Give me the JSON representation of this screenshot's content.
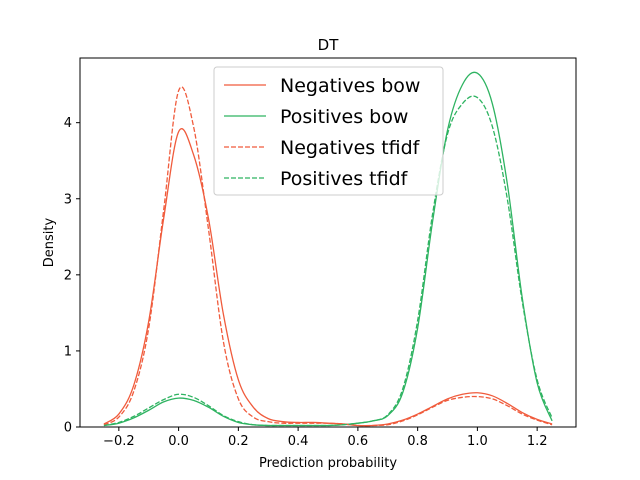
{
  "chart_data": {
    "type": "line",
    "title": "DT",
    "xlabel": "Prediction probability",
    "ylabel": "Density",
    "xlim": [
      -0.33,
      1.33
    ],
    "ylim": [
      0,
      4.85
    ],
    "xticks": [
      -0.2,
      0.0,
      0.2,
      0.4,
      0.6,
      0.8,
      1.0,
      1.2
    ],
    "xtick_labels": [
      "−0.2",
      "0.0",
      "0.2",
      "0.4",
      "0.6",
      "0.8",
      "1.0",
      "1.2"
    ],
    "yticks": [
      0,
      1,
      2,
      3,
      4
    ],
    "ytick_labels": [
      "0",
      "1",
      "2",
      "3",
      "4"
    ],
    "grid": false,
    "legend_position": "top-center",
    "colors": {
      "negatives": "#f05b3c",
      "positives": "#2eb361"
    },
    "series": [
      {
        "name": "Negatives bow",
        "color": "#f05b3c",
        "dash": "solid",
        "x": [
          -0.25,
          -0.2,
          -0.15,
          -0.1,
          -0.05,
          0.0,
          0.05,
          0.1,
          0.15,
          0.2,
          0.25,
          0.3,
          0.35,
          0.4,
          0.45,
          0.5,
          0.55,
          0.6,
          0.65,
          0.7,
          0.75,
          0.8,
          0.85,
          0.9,
          0.95,
          1.0,
          1.05,
          1.1,
          1.15,
          1.2,
          1.25
        ],
        "y": [
          0.04,
          0.17,
          0.55,
          1.39,
          2.74,
          3.88,
          3.58,
          2.74,
          1.48,
          0.62,
          0.26,
          0.11,
          0.07,
          0.06,
          0.06,
          0.05,
          0.04,
          0.02,
          0.02,
          0.04,
          0.09,
          0.17,
          0.27,
          0.37,
          0.43,
          0.45,
          0.41,
          0.31,
          0.19,
          0.1,
          0.04
        ]
      },
      {
        "name": "Positives bow",
        "color": "#2eb361",
        "dash": "solid",
        "x": [
          -0.25,
          -0.2,
          -0.15,
          -0.1,
          -0.05,
          0.0,
          0.05,
          0.1,
          0.15,
          0.2,
          0.25,
          0.3,
          0.35,
          0.4,
          0.45,
          0.5,
          0.55,
          0.6,
          0.65,
          0.7,
          0.75,
          0.8,
          0.85,
          0.9,
          0.95,
          1.0,
          1.05,
          1.1,
          1.15,
          1.2,
          1.25
        ],
        "y": [
          0.02,
          0.05,
          0.12,
          0.22,
          0.33,
          0.38,
          0.35,
          0.26,
          0.14,
          0.06,
          0.03,
          0.02,
          0.02,
          0.02,
          0.02,
          0.02,
          0.03,
          0.05,
          0.08,
          0.15,
          0.45,
          1.3,
          2.7,
          3.9,
          4.5,
          4.65,
          4.25,
          3.2,
          1.7,
          0.58,
          0.08
        ]
      },
      {
        "name": "Negatives tfidf",
        "color": "#f05b3c",
        "dash": "dashed",
        "x": [
          -0.25,
          -0.2,
          -0.15,
          -0.1,
          -0.05,
          0.0,
          0.05,
          0.1,
          0.15,
          0.2,
          0.25,
          0.3,
          0.35,
          0.4,
          0.45,
          0.5,
          0.55,
          0.6,
          0.65,
          0.7,
          0.75,
          0.8,
          0.85,
          0.9,
          0.95,
          1.0,
          1.05,
          1.1,
          1.15,
          1.2,
          1.25
        ],
        "y": [
          0.03,
          0.13,
          0.47,
          1.3,
          2.85,
          4.42,
          3.95,
          2.6,
          1.12,
          0.37,
          0.13,
          0.07,
          0.05,
          0.05,
          0.05,
          0.05,
          0.04,
          0.02,
          0.02,
          0.03,
          0.08,
          0.16,
          0.26,
          0.35,
          0.39,
          0.4,
          0.37,
          0.28,
          0.17,
          0.09,
          0.03
        ]
      },
      {
        "name": "Positives tfidf",
        "color": "#2eb361",
        "dash": "dashed",
        "x": [
          -0.25,
          -0.2,
          -0.15,
          -0.1,
          -0.05,
          0.0,
          0.05,
          0.1,
          0.15,
          0.2,
          0.25,
          0.3,
          0.35,
          0.4,
          0.45,
          0.5,
          0.55,
          0.6,
          0.65,
          0.7,
          0.75,
          0.8,
          0.85,
          0.9,
          0.95,
          1.0,
          1.05,
          1.1,
          1.15,
          1.2,
          1.25
        ],
        "y": [
          0.02,
          0.06,
          0.14,
          0.25,
          0.36,
          0.43,
          0.39,
          0.28,
          0.15,
          0.07,
          0.03,
          0.02,
          0.02,
          0.02,
          0.02,
          0.02,
          0.03,
          0.05,
          0.08,
          0.16,
          0.5,
          1.4,
          2.8,
          3.85,
          4.25,
          4.33,
          3.95,
          3.0,
          1.65,
          0.62,
          0.12
        ]
      }
    ]
  }
}
